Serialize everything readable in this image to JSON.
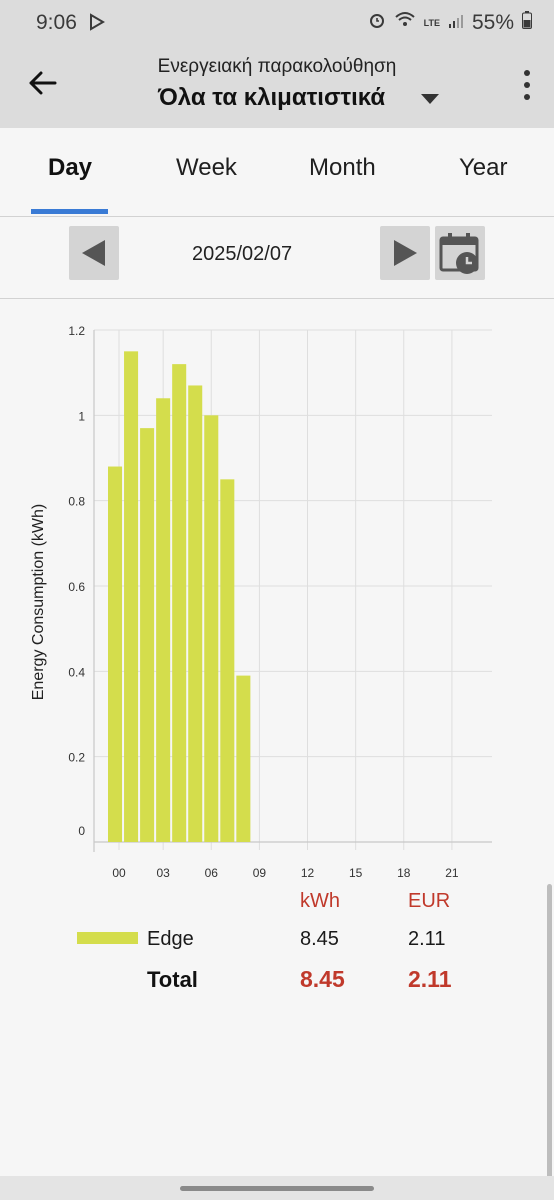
{
  "status": {
    "time": "9:06",
    "battery": "55%",
    "lte_label": "LTE"
  },
  "header": {
    "subtitle": "Ενεργειακή παρακολούθηση",
    "title": "Όλα τα κλιματιστικά"
  },
  "tabs": [
    {
      "label": "Day",
      "active": true
    },
    {
      "label": "Week",
      "active": false
    },
    {
      "label": "Month",
      "active": false
    },
    {
      "label": "Year",
      "active": false
    }
  ],
  "date": "2025/02/07",
  "chart_data": {
    "type": "bar",
    "ylabel": "Energy Consumption (kWh)",
    "xlabel": "",
    "x_ticks": [
      "00",
      "03",
      "06",
      "09",
      "12",
      "15",
      "18",
      "21"
    ],
    "y_ticks": [
      "0",
      "0.2",
      "0.4",
      "0.6",
      "0.8",
      "1",
      "1.2"
    ],
    "ylim": [
      0,
      1.2
    ],
    "xlim": [
      0,
      24
    ],
    "grid": true,
    "bar_color": "#d4dd4c",
    "series": [
      {
        "name": "Edge",
        "x": [
          0,
          1,
          2,
          3,
          4,
          5,
          6,
          7,
          8
        ],
        "values": [
          0.88,
          1.15,
          0.97,
          1.04,
          1.12,
          1.07,
          1.0,
          0.85,
          0.39
        ]
      }
    ]
  },
  "summary": {
    "col_kwh": "kWh",
    "col_eur": "EUR",
    "rows": [
      {
        "name": "Edge",
        "kwh": "8.45",
        "eur": "2.11"
      }
    ],
    "total": {
      "label": "Total",
      "kwh": "8.45",
      "eur": "2.11"
    }
  },
  "colors": {
    "accent": "#3a7bd5",
    "highlight": "#c0392b",
    "bar": "#d4dd4c"
  }
}
